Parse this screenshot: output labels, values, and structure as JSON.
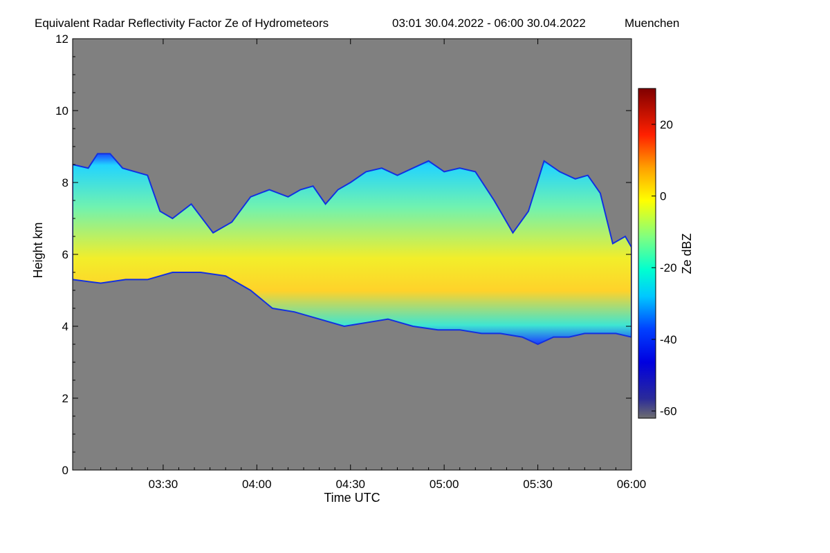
{
  "chart_data": {
    "type": "heatmap",
    "title": "Equivalent Radar Reflectivity Factor Ze of Hydrometeors",
    "time_range": "03:01 30.04.2022 - 06:00 30.04.2022",
    "location": "Muenchen",
    "xlabel": "Time UTC",
    "ylabel": "Height km",
    "colorbar_label": "Ze dBZ",
    "xlim_minutes": [
      181,
      360
    ],
    "ylim": [
      0,
      12
    ],
    "x_ticks": [
      {
        "minutes": 210,
        "label": "03:30"
      },
      {
        "minutes": 240,
        "label": "04:00"
      },
      {
        "minutes": 270,
        "label": "04:30"
      },
      {
        "minutes": 300,
        "label": "05:00"
      },
      {
        "minutes": 330,
        "label": "05:30"
      },
      {
        "minutes": 360,
        "label": "06:00"
      }
    ],
    "y_ticks": [
      0,
      2,
      4,
      6,
      8,
      10,
      12
    ],
    "colorbar_range": [
      -62,
      30
    ],
    "colorbar_ticks": [
      -60,
      -40,
      -20,
      0,
      20
    ],
    "colormap": "jet",
    "no_signal_color": "#808080",
    "cloud_layer": {
      "base_height_km": [
        [
          181,
          5.3
        ],
        [
          190,
          5.2
        ],
        [
          198,
          5.3
        ],
        [
          205,
          5.3
        ],
        [
          213,
          5.5
        ],
        [
          222,
          5.5
        ],
        [
          230,
          5.4
        ],
        [
          238,
          5.0
        ],
        [
          245,
          4.5
        ],
        [
          252,
          4.4
        ],
        [
          260,
          4.2
        ],
        [
          268,
          4.0
        ],
        [
          275,
          4.1
        ],
        [
          282,
          4.2
        ],
        [
          290,
          4.0
        ],
        [
          298,
          3.9
        ],
        [
          305,
          3.9
        ],
        [
          312,
          3.8
        ],
        [
          318,
          3.8
        ],
        [
          325,
          3.7
        ],
        [
          330,
          3.5
        ],
        [
          335,
          3.7
        ],
        [
          340,
          3.7
        ],
        [
          345,
          3.8
        ],
        [
          350,
          3.8
        ],
        [
          355,
          3.8
        ],
        [
          360,
          3.7
        ]
      ],
      "top_height_km": [
        [
          181,
          8.5
        ],
        [
          186,
          8.4
        ],
        [
          189,
          8.8
        ],
        [
          193,
          8.8
        ],
        [
          197,
          8.4
        ],
        [
          201,
          8.3
        ],
        [
          205,
          8.2
        ],
        [
          209,
          7.2
        ],
        [
          213,
          7.0
        ],
        [
          219,
          7.4
        ],
        [
          226,
          6.6
        ],
        [
          232,
          6.9
        ],
        [
          238,
          7.6
        ],
        [
          244,
          7.8
        ],
        [
          250,
          7.6
        ],
        [
          254,
          7.8
        ],
        [
          258,
          7.9
        ],
        [
          262,
          7.4
        ],
        [
          266,
          7.8
        ],
        [
          270,
          8.0
        ],
        [
          275,
          8.3
        ],
        [
          280,
          8.4
        ],
        [
          285,
          8.2
        ],
        [
          290,
          8.4
        ],
        [
          295,
          8.6
        ],
        [
          300,
          8.3
        ],
        [
          305,
          8.4
        ],
        [
          310,
          8.3
        ],
        [
          316,
          7.5
        ],
        [
          322,
          6.6
        ],
        [
          327,
          7.2
        ],
        [
          332,
          8.6
        ],
        [
          337,
          8.3
        ],
        [
          342,
          8.1
        ],
        [
          346,
          8.2
        ],
        [
          350,
          7.7
        ],
        [
          354,
          6.3
        ],
        [
          358,
          6.5
        ],
        [
          360,
          6.2
        ]
      ],
      "core_max_dbz": 5
    }
  }
}
